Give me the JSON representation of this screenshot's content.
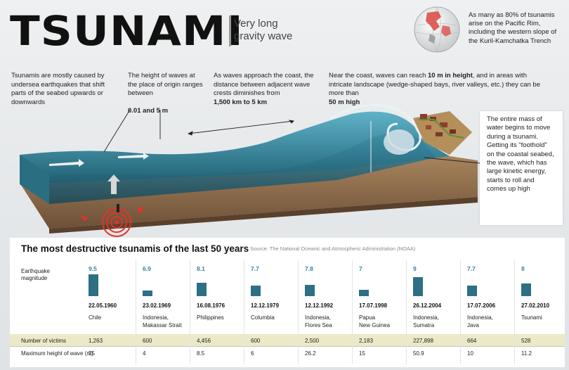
{
  "header": {
    "title": "TSUNAMI",
    "subtitle": "Very long gravity wave"
  },
  "pacific_note": "As many as 80% of tsunamis arise on the Pacific Rim, including the western slope of the Kuril-Kamchatka Trench",
  "notes": {
    "cause": "Tsunamis are mostly caused by undersea earthquakes that shift parts of the seabed upwards or downwards",
    "height_pre": "The height of waves at the place of origin ranges between",
    "height_bold": "0.01 and 5 m",
    "distance_pre": "As waves approach the coast, the distance between adjacent wave crests diminishes from",
    "distance_bold": "1,500 km to 5 km",
    "coast_pre": "Near the coast, waves can reach",
    "coast_bold1": "10 m in height",
    "coast_mid": ", and in areas with intricate landscape (wedge-shaped bays, river valleys, etc.) they can be more than",
    "coast_bold2": "50 m high"
  },
  "mass_note": "The entire mass of water begins to move during a tsunami. Getting its “foothold” on the coastal seabed, the wave, which has large kinetic energy, starts to roll and comes up high",
  "table": {
    "title": "The most destructive tsunamis of the last 50 years",
    "source": "Source: The National Oceanic and Atmospheric Administration (NOAA)",
    "magnitude_label": "Earthquake magnitude",
    "victims_label": "Number of victims",
    "maxh_label": "Maximum height of wave (m)"
  },
  "colors": {
    "bar": "#2d6f85",
    "magnitude_text": "#3a7fa0",
    "victims_band": "#ece9c9",
    "water": "#2f7f96",
    "seabed": "#8b6a48"
  },
  "chart_data": {
    "type": "bar",
    "title": "The most destructive tsunamis of the last 50 years",
    "ylabel": "Earthquake magnitude",
    "ylim": [
      6,
      9.6
    ],
    "rows": [
      {
        "date": "22.05.1960",
        "place": [
          "Chile"
        ],
        "magnitude": 9.5,
        "magnitude_label": "9.5",
        "victims": "1,263",
        "max_height": "25"
      },
      {
        "date": "23.02.1969",
        "place": [
          "Indonesia,",
          "Makassar Strait"
        ],
        "magnitude": 6.9,
        "magnitude_label": "6.9",
        "victims": "600",
        "max_height": "4"
      },
      {
        "date": "16.08.1976",
        "place": [
          "Philippines"
        ],
        "magnitude": 8.1,
        "magnitude_label": "8.1",
        "victims": "4,456",
        "max_height": "8.5"
      },
      {
        "date": "12.12.1979",
        "place": [
          "Columbia"
        ],
        "magnitude": 7.7,
        "magnitude_label": "7.7",
        "victims": "600",
        "max_height": "6"
      },
      {
        "date": "12.12.1992",
        "place": [
          "Indonesia,",
          "Flores Sea"
        ],
        "magnitude": 7.8,
        "magnitude_label": "7.8",
        "victims": "2,500",
        "max_height": "26.2"
      },
      {
        "date": "17.07.1998",
        "place": [
          "Papua",
          "New Guinea"
        ],
        "magnitude": 7.0,
        "magnitude_label": "7",
        "victims": "2,183",
        "max_height": "15"
      },
      {
        "date": "26.12.2004",
        "place": [
          "Indonesia,",
          "Sumatra"
        ],
        "magnitude": 9.0,
        "magnitude_label": "9",
        "victims": "227,898",
        "max_height": "50.9"
      },
      {
        "date": "17.07.2006",
        "place": [
          "Indonesia,",
          "Java"
        ],
        "magnitude": 7.7,
        "magnitude_label": "7.7",
        "victims": "664",
        "max_height": "10"
      },
      {
        "date": "27.02.2010",
        "place": [
          "Tsunami"
        ],
        "magnitude": 8.0,
        "magnitude_label": "8",
        "victims": "528",
        "max_height": "11.2"
      }
    ]
  }
}
